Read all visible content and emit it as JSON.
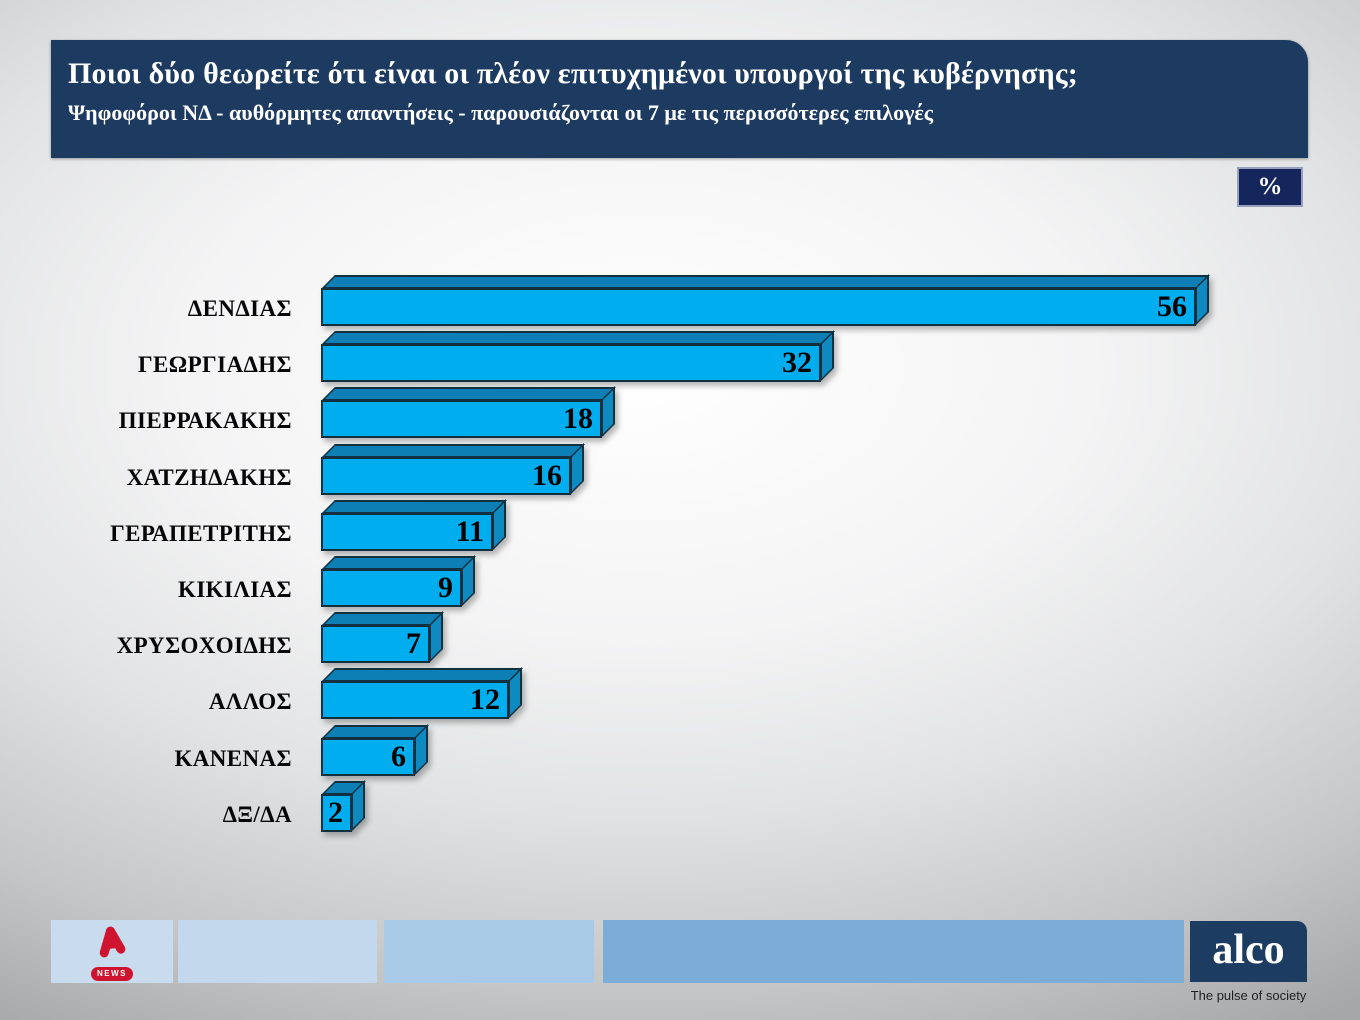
{
  "header": {
    "title": "Ποιοι δύο θεωρείτε ότι είναι οι πλέον επιτυχημένοι υπουργοί της κυβέρνησης;",
    "subtitle": "Ψηφοφόροι ΝΔ - αυθόρμητες απαντήσεις - παρουσιάζονται οι 7 με τις περισσότερες επιλογές"
  },
  "unit_badge": "%",
  "chart_data": {
    "type": "bar",
    "orientation": "horizontal",
    "title": "Ποιοι δύο θεωρείτε ότι είναι οι πλέον επιτυχημένοι υπουργοί της κυβέρνησης;",
    "subtitle": "Ψηφοφόροι ΝΔ - αυθόρμητες απαντήσεις - παρουσιάζονται οι 7 με τις περισσότερες επιλογές",
    "unit": "%",
    "categories": [
      "ΔΕΝΔΙΑΣ",
      "ΓΕΩΡΓΙΑΔΗΣ",
      "ΠΙΕΡΡΑΚΑΚΗΣ",
      "ΧΑΤΖΗΔΑΚΗΣ",
      "ΓΕΡΑΠΕΤΡΙΤΗΣ",
      "ΚΙΚΙΛΙΑΣ",
      "ΧΡΥΣΟΧΟΙΔΗΣ",
      "ΑΛΛΟΣ",
      "ΚΑΝΕΝΑΣ",
      "ΔΞ/ΔΑ"
    ],
    "values": [
      56,
      32,
      18,
      16,
      11,
      9,
      7,
      12,
      6,
      2
    ],
    "value_labels_position": "inside-end",
    "xlim": [
      0,
      60
    ],
    "grid": false,
    "legend": false,
    "bar_style": "3d"
  },
  "footer": {
    "alpha_news_label": "NEWS",
    "alco_logo_text": "alco",
    "alco_tagline": "The pulse of society"
  },
  "colors": {
    "header_bg": "#1d3a61",
    "badge_bg": "#15265c",
    "bar_front": "#00aeef",
    "bar_top": "#0e7fb4",
    "bar_side": "#0f8ac0",
    "bar_outline": "#12303f",
    "alco_bg": "#1d3c62",
    "alpha_red": "#cf1430",
    "footer_bands": [
      "#c8dcee",
      "#c3d8ec",
      "#a8cae6",
      "#7cacd8"
    ]
  }
}
